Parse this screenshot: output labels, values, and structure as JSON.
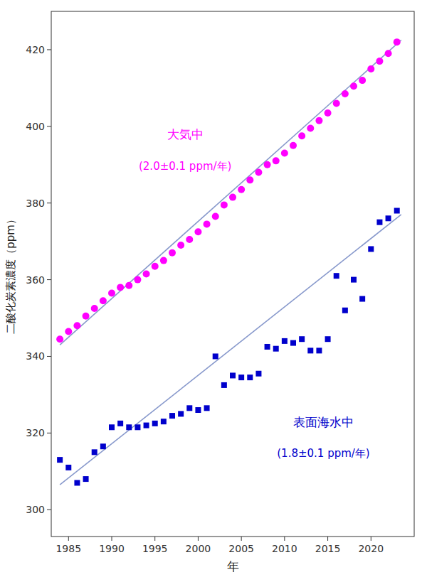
{
  "chart_data": {
    "type": "scatter",
    "xlabel": "年",
    "ylabel": "二酸化炭素濃度（ppm）",
    "xlim": [
      1983,
      2025
    ],
    "ylim": [
      293,
      430
    ],
    "xticks": [
      1985,
      1990,
      1995,
      2000,
      2005,
      2010,
      2015,
      2020
    ],
    "yticks": [
      300,
      320,
      340,
      360,
      380,
      400,
      420
    ],
    "grid": false,
    "series": [
      {
        "type": "line",
        "color": "#8899CC",
        "line_style": "solid",
        "x": [
          1984,
          2023.5
        ],
        "values": [
          343.0,
          422.5
        ]
      },
      {
        "type": "line",
        "color": "#8899CC",
        "line_style": "solid",
        "x": [
          1984,
          2023.5
        ],
        "values": [
          306.5,
          377.0
        ]
      },
      {
        "type": "scatter",
        "color": "#FF00FF",
        "marker": "circle",
        "x": [
          1984,
          1985,
          1986,
          1987,
          1988,
          1989,
          1990,
          1991,
          1992,
          1993,
          1994,
          1995,
          1996,
          1997,
          1998,
          1999,
          2000,
          2001,
          2002,
          2003,
          2004,
          2005,
          2006,
          2007,
          2008,
          2009,
          2010,
          2011,
          2012,
          2013,
          2014,
          2015,
          2016,
          2017,
          2018,
          2019,
          2020,
          2021,
          2022,
          2023
        ],
        "values": [
          344.5,
          346.5,
          348.0,
          350.5,
          352.5,
          354.5,
          356.5,
          358.0,
          358.5,
          360.0,
          361.5,
          363.5,
          365.0,
          367.0,
          369.0,
          370.5,
          372.5,
          374.5,
          376.5,
          379.5,
          381.5,
          383.5,
          386.0,
          388.0,
          390.0,
          391.0,
          393.0,
          395.0,
          397.5,
          399.5,
          401.5,
          403.5,
          406.0,
          408.5,
          410.5,
          412.0,
          415.0,
          417.0,
          419.0,
          422.0
        ]
      },
      {
        "type": "scatter",
        "color": "#0000CC",
        "marker": "square",
        "x": [
          1984,
          1985,
          1986,
          1987,
          1988,
          1989,
          1990,
          1991,
          1992,
          1993,
          1994,
          1995,
          1996,
          1997,
          1998,
          1999,
          2000,
          2001,
          2002,
          2003,
          2004,
          2005,
          2006,
          2007,
          2008,
          2009,
          2010,
          2011,
          2012,
          2013,
          2014,
          2015,
          2016,
          2017,
          2018,
          2019,
          2020,
          2021,
          2022,
          2023
        ],
        "values": [
          313.0,
          311.0,
          307.0,
          308.0,
          315.0,
          316.5,
          321.5,
          322.5,
          321.5,
          321.5,
          322.0,
          322.5,
          323.0,
          324.5,
          325.0,
          326.5,
          326.0,
          326.5,
          340.0,
          332.5,
          335.0,
          334.5,
          334.5,
          335.5,
          342.5,
          342.0,
          344.0,
          343.5,
          344.5,
          341.5,
          341.5,
          344.5,
          361.0,
          352.0,
          360.0,
          355.0,
          368.0,
          375.0,
          376.0,
          378.0
        ]
      }
    ],
    "annotations": [
      {
        "text": "大気中",
        "x": 1998.5,
        "y": 396,
        "color": "#FF00FF"
      },
      {
        "text": "(2.0±0.1 ppm/年)",
        "x": 1998.5,
        "y": 388,
        "color": "#FF00FF"
      },
      {
        "text": "表面海水中",
        "x": 2014.5,
        "y": 321,
        "color": "#0000CC"
      },
      {
        "text": "(1.8±0.1 ppm/年)",
        "x": 2014.5,
        "y": 313,
        "color": "#0000CC"
      }
    ]
  }
}
